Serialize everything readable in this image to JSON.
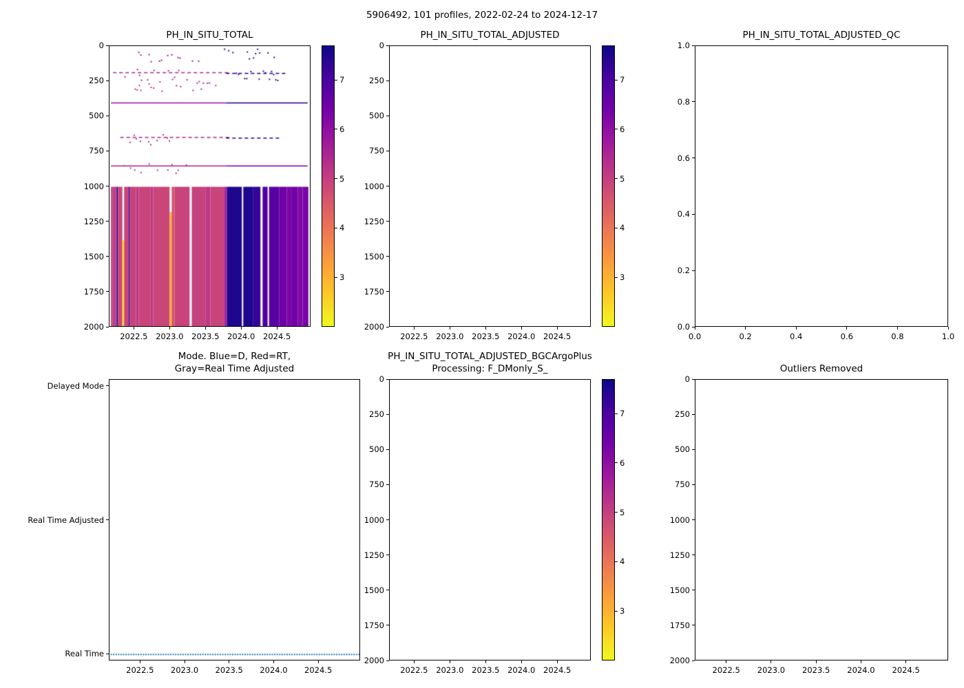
{
  "figure": {
    "suptitle": "5906492, 101 profiles, 2022-02-24 to 2024-12-17",
    "float_id": "5906492",
    "n_profiles": 101,
    "start_date": "2022-02-24",
    "end_date": "2024-12-17",
    "background": "#ffffff"
  },
  "colormap": {
    "name": "plasma_reversed",
    "vmin": 2.0,
    "vmax": 7.7,
    "stops_top_to_bottom": [
      "#0d0887",
      "#46039f",
      "#7201a8",
      "#9c179e",
      "#bd3786",
      "#d8576b",
      "#ed7953",
      "#fb9f3a",
      "#fdca26",
      "#f0f921"
    ]
  },
  "chart_data": [
    {
      "type": "heatmap",
      "title": "PH_IN_SITU_TOTAL",
      "xlim": [
        2022.15,
        2024.97
      ],
      "ylim": [
        2000,
        0
      ],
      "xticks": [
        2022.5,
        2023.0,
        2023.5,
        2024.0,
        2024.5
      ],
      "xtick_labels": [
        "2022.5",
        "2023.0",
        "2023.5",
        "2024.0",
        "2024.5"
      ],
      "yticks": [
        0,
        250,
        500,
        750,
        1000,
        1250,
        1500,
        1750,
        2000
      ],
      "ytick_labels": [
        "0",
        "250",
        "500",
        "750",
        "1000",
        "1250",
        "1500",
        "1750",
        "2000"
      ],
      "colorbar": {
        "vmin": 2.0,
        "vmax": 7.7,
        "ticks": [
          7,
          6,
          5,
          4,
          3
        ],
        "tick_labels": [
          "7",
          "6",
          "5",
          "4",
          "3"
        ]
      },
      "deep_top": 1000,
      "deep_bottom": 2000,
      "deep_columns": [
        {
          "x0": 2022.17,
          "x1": 2022.205,
          "ph": 4.85
        },
        {
          "x0": 2022.205,
          "x1": 2022.225,
          "ph": 5.6
        },
        {
          "x0": 2022.225,
          "x1": 2022.25,
          "ph": 4.9
        },
        {
          "x0": 2022.25,
          "x1": 2022.27,
          "ph": 7.4
        },
        {
          "x0": 2022.27,
          "x1": 2022.33,
          "ph": 4.85
        },
        {
          "x0": 2022.33,
          "x1": 2022.355,
          "ph": 2.4,
          "y0": 1380
        },
        {
          "x0": 2022.355,
          "x1": 2022.42,
          "ph": 4.9
        },
        {
          "x0": 2022.42,
          "x1": 2022.435,
          "ph": 7.3
        },
        {
          "x0": 2022.435,
          "x1": 2022.52,
          "ph": 4.95
        },
        {
          "x0": 2022.52,
          "x1": 2022.56,
          "ph": 5.15
        },
        {
          "x0": 2022.56,
          "x1": 2022.72,
          "ph": 4.9
        },
        {
          "x0": 2022.72,
          "x1": 2022.76,
          "ph": 5.1
        },
        {
          "x0": 2022.76,
          "x1": 2022.99,
          "ph": 4.87
        },
        {
          "x0": 2022.99,
          "x1": 2023.02,
          "ph": 3.0,
          "y0": 1180
        },
        {
          "x0": 2023.02,
          "x1": 2023.06,
          "ph": 4.6
        },
        {
          "x0": 2023.06,
          "x1": 2023.27,
          "ph": 4.9
        },
        {
          "x0": 2023.3,
          "x1": 2023.49,
          "ph": 4.95
        },
        {
          "x0": 2023.49,
          "x1": 2023.56,
          "ph": 5.15
        },
        {
          "x0": 2023.56,
          "x1": 2023.75,
          "ph": 4.9
        },
        {
          "x0": 2023.75,
          "x1": 2023.79,
          "ph": 5.5
        },
        {
          "x0": 2023.79,
          "x1": 2024.0,
          "ph": 7.5
        },
        {
          "x0": 2024.02,
          "x1": 2024.16,
          "ph": 7.5
        },
        {
          "x0": 2024.16,
          "x1": 2024.26,
          "ph": 7.25
        },
        {
          "x0": 2024.29,
          "x1": 2024.36,
          "ph": 6.95
        },
        {
          "x0": 2024.38,
          "x1": 2024.52,
          "ph": 6.8
        },
        {
          "x0": 2024.52,
          "x1": 2024.63,
          "ph": 6.5
        },
        {
          "x0": 2024.63,
          "x1": 2024.7,
          "ph": 6.3
        },
        {
          "x0": 2024.7,
          "x1": 2024.78,
          "ph": 6.45
        },
        {
          "x0": 2024.78,
          "x1": 2024.85,
          "ph": 6.2
        },
        {
          "x0": 2024.85,
          "x1": 2024.93,
          "ph": 6.35
        }
      ],
      "shallow_features": [
        {
          "depth": 55,
          "x0": 2022.35,
          "x1": 2022.55,
          "style": "dots",
          "ph": 7.2
        },
        {
          "depth": 75,
          "x0": 2022.55,
          "x1": 2023.4,
          "style": "dots",
          "ph": 5.8
        },
        {
          "depth": 55,
          "x0": 2023.75,
          "x1": 2024.45,
          "style": "dots",
          "ph": 7.4
        },
        {
          "depth": 185,
          "x0": 2022.2,
          "x1": 2023.78,
          "style": "dashed",
          "ph": 5.3
        },
        {
          "depth": 200,
          "x0": 2022.3,
          "x1": 2023.3,
          "style": "dots",
          "ph": 5.6
        },
        {
          "depth": 190,
          "x0": 2023.78,
          "x1": 2024.6,
          "style": "dashed",
          "ph": 7.4
        },
        {
          "depth": 210,
          "x0": 2023.8,
          "x1": 2024.5,
          "style": "dots",
          "ph": 7.2
        },
        {
          "depth": 285,
          "x0": 2022.5,
          "x1": 2023.65,
          "style": "dots",
          "ph": 5.5
        },
        {
          "depth": 300,
          "x0": 2022.55,
          "x1": 2022.75,
          "style": "dots",
          "ph": 5.3
        },
        {
          "depth": 400,
          "x0": 2022.17,
          "x1": 2023.78,
          "style": "solid",
          "ph": 5.7
        },
        {
          "depth": 400,
          "x0": 2023.78,
          "x1": 2024.92,
          "style": "solid",
          "ph": 7.3
        },
        {
          "depth": 645,
          "x0": 2022.3,
          "x1": 2023.78,
          "style": "dashed",
          "ph": 5.4
        },
        {
          "depth": 650,
          "x0": 2023.78,
          "x1": 2024.55,
          "style": "dashed",
          "ph": 7.2
        },
        {
          "depth": 660,
          "x0": 2022.4,
          "x1": 2023.0,
          "style": "dots",
          "ph": 5.4
        },
        {
          "depth": 848,
          "x0": 2022.17,
          "x1": 2023.78,
          "style": "solid",
          "ph": 5.4
        },
        {
          "depth": 848,
          "x0": 2023.78,
          "x1": 2024.92,
          "style": "solid",
          "ph": 6.2
        },
        {
          "depth": 865,
          "x0": 2022.35,
          "x1": 2023.3,
          "style": "dots",
          "ph": 5.3
        }
      ]
    },
    {
      "type": "heatmap",
      "title": "PH_IN_SITU_TOTAL_ADJUSTED",
      "xlim": [
        2022.15,
        2024.97
      ],
      "ylim": [
        2000,
        0
      ],
      "xticks": [
        2022.5,
        2023.0,
        2023.5,
        2024.0,
        2024.5
      ],
      "xtick_labels": [
        "2022.5",
        "2023.0",
        "2023.5",
        "2024.0",
        "2024.5"
      ],
      "yticks": [
        0,
        250,
        500,
        750,
        1000,
        1250,
        1500,
        1750,
        2000
      ],
      "ytick_labels": [
        "0",
        "250",
        "500",
        "750",
        "1000",
        "1250",
        "1500",
        "1750",
        "2000"
      ],
      "colorbar": {
        "vmin": 2.0,
        "vmax": 7.7,
        "ticks": [
          7,
          6,
          5,
          4,
          3
        ],
        "tick_labels": [
          "7",
          "6",
          "5",
          "4",
          "3"
        ]
      },
      "deep_columns": [],
      "shallow_features": []
    },
    {
      "type": "scatter",
      "title": "PH_IN_SITU_TOTAL_ADJUSTED_QC",
      "xlim": [
        0.0,
        1.0
      ],
      "ylim": [
        0.0,
        1.0
      ],
      "xticks": [
        0.0,
        0.2,
        0.4,
        0.6,
        0.8,
        1.0
      ],
      "xtick_labels": [
        "0.0",
        "0.2",
        "0.4",
        "0.6",
        "0.8",
        "1.0"
      ],
      "yticks": [
        0.0,
        0.2,
        0.4,
        0.6,
        0.8,
        1.0
      ],
      "ytick_labels": [
        "0.0",
        "0.2",
        "0.4",
        "0.6",
        "0.8",
        "1.0"
      ],
      "points": []
    },
    {
      "type": "scatter",
      "title": "Mode. Blue=D, Red=RT,\nGray=Real Time Adjusted",
      "xlim": [
        2022.15,
        2024.97
      ],
      "ylim": [
        -0.05,
        2.05
      ],
      "xticks": [
        2022.5,
        2023.0,
        2023.5,
        2024.0,
        2024.5
      ],
      "xtick_labels": [
        "2022.5",
        "2023.0",
        "2023.5",
        "2024.0",
        "2024.5"
      ],
      "yticks": [
        2,
        1,
        0
      ],
      "ytick_labels": [
        "Delayed Mode",
        "Real Time Adjusted",
        "Real Time"
      ],
      "series": [
        {
          "name": "mode",
          "value_label": "Real Time",
          "color": "#1f77b4",
          "marker": "square-dotted",
          "y_value": 0,
          "x_start": 2022.17,
          "x_end": 2024.95,
          "n_points": 101
        }
      ]
    },
    {
      "type": "heatmap",
      "title": "PH_IN_SITU_TOTAL_ADJUSTED_BGCArgoPlus\nProcessing: F_DMonly_S_",
      "xlim": [
        2022.15,
        2024.97
      ],
      "ylim": [
        2000,
        0
      ],
      "xticks": [
        2022.5,
        2023.0,
        2023.5,
        2024.0,
        2024.5
      ],
      "xtick_labels": [
        "2022.5",
        "2023.0",
        "2023.5",
        "2024.0",
        "2024.5"
      ],
      "yticks": [
        0,
        250,
        500,
        750,
        1000,
        1250,
        1500,
        1750,
        2000
      ],
      "ytick_labels": [
        "0",
        "250",
        "500",
        "750",
        "1000",
        "1250",
        "1500",
        "1750",
        "2000"
      ],
      "colorbar": {
        "vmin": 2.0,
        "vmax": 7.7,
        "ticks": [
          7,
          6,
          5,
          4,
          3
        ],
        "tick_labels": [
          "7",
          "6",
          "5",
          "4",
          "3"
        ]
      },
      "deep_columns": [],
      "shallow_features": []
    },
    {
      "type": "heatmap",
      "title": "Outliers Removed",
      "xlim": [
        2022.15,
        2024.97
      ],
      "ylim": [
        2000,
        0
      ],
      "xticks": [
        2022.5,
        2023.0,
        2023.5,
        2024.0,
        2024.5
      ],
      "xtick_labels": [
        "2022.5",
        "2023.0",
        "2023.5",
        "2024.0",
        "2024.5"
      ],
      "yticks": [
        0,
        250,
        500,
        750,
        1000,
        1250,
        1500,
        1750,
        2000
      ],
      "ytick_labels": [
        "0",
        "250",
        "500",
        "750",
        "1000",
        "1250",
        "1500",
        "1750",
        "2000"
      ],
      "deep_columns": [],
      "shallow_features": []
    }
  ]
}
